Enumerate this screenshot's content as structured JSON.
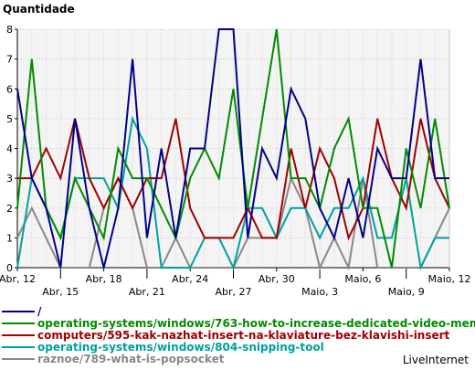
{
  "chart_data": {
    "type": "line",
    "title": "",
    "ylabel": "Quantidade",
    "xlabel": "",
    "ylim": [
      0,
      8
    ],
    "yticks": [
      "0",
      "1",
      "2",
      "3",
      "4",
      "5",
      "6",
      "7",
      "8"
    ],
    "grid": true,
    "legend_position": "bottom",
    "x_tick_labels": [
      "Abr, 12",
      "Abr, 15",
      "Abr, 18",
      "Abr, 21",
      "Abr, 24",
      "Abr, 27",
      "Abr, 30",
      "Maio, 3",
      "Maio, 6",
      "Maio, 9",
      "Maio, 12"
    ],
    "x": [
      "Abr, 12",
      "Abr, 13",
      "Abr, 14",
      "Abr, 15",
      "Abr, 16",
      "Abr, 17",
      "Abr, 18",
      "Abr, 19",
      "Abr, 20",
      "Abr, 21",
      "Abr, 22",
      "Abr, 23",
      "Abr, 24",
      "Abr, 25",
      "Abr, 26",
      "Abr, 27",
      "Abr, 28",
      "Abr, 29",
      "Abr, 30",
      "Maio, 1",
      "Maio, 2",
      "Maio, 3",
      "Maio, 4",
      "Maio, 5",
      "Maio, 6",
      "Maio, 7",
      "Maio, 8",
      "Maio, 9",
      "Maio, 10",
      "Maio, 11",
      "Maio, 12"
    ],
    "series": [
      {
        "name": "/",
        "color": "#00008b",
        "values": [
          6,
          3,
          2,
          0,
          5,
          2,
          0,
          2,
          7,
          1,
          4,
          1,
          4,
          4,
          8,
          8,
          1,
          4,
          3,
          6,
          5,
          2,
          1,
          3,
          1,
          4,
          3,
          3,
          7,
          3,
          3
        ]
      },
      {
        "name": "operating-systems/windows/763-how-to-increase-dedicated-video-memory-",
        "color": "#008b00",
        "values": [
          2,
          7,
          2,
          1,
          3,
          2,
          1,
          4,
          3,
          3,
          2,
          1,
          3,
          4,
          3,
          6,
          2,
          5,
          8,
          3,
          3,
          2,
          4,
          5,
          2,
          2,
          0,
          4,
          2,
          5,
          2
        ]
      },
      {
        "name": "computers/595-kak-nazhat-insert-na-klaviature-bez-klavishi-insert",
        "color": "#a00000",
        "values": [
          3,
          3,
          4,
          3,
          5,
          3,
          2,
          3,
          2,
          3,
          3,
          5,
          2,
          1,
          1,
          1,
          2,
          1,
          1,
          4,
          2,
          4,
          3,
          1,
          2,
          5,
          3,
          2,
          5,
          3,
          2
        ]
      },
      {
        "name": "operating-systems/windows/804-snipping-tool",
        "color": "#00a0a0",
        "values": [
          0,
          3,
          2,
          1,
          3,
          3,
          3,
          2,
          5,
          4,
          0,
          0,
          0,
          1,
          1,
          0,
          2,
          2,
          1,
          2,
          2,
          1,
          2,
          2,
          3,
          1,
          1,
          3,
          0,
          1,
          1
        ]
      },
      {
        "name": "raznoe/789-what-is-popsocket",
        "color": "#888888",
        "values": [
          1,
          2,
          1,
          0,
          0,
          0,
          2,
          3,
          2,
          0,
          0,
          1,
          0,
          0,
          0,
          0,
          1,
          1,
          1,
          3,
          2,
          0,
          1,
          0,
          3,
          0,
          0,
          0,
          0,
          1,
          2
        ]
      }
    ]
  },
  "branding": {
    "label": "LiveInternet"
  }
}
